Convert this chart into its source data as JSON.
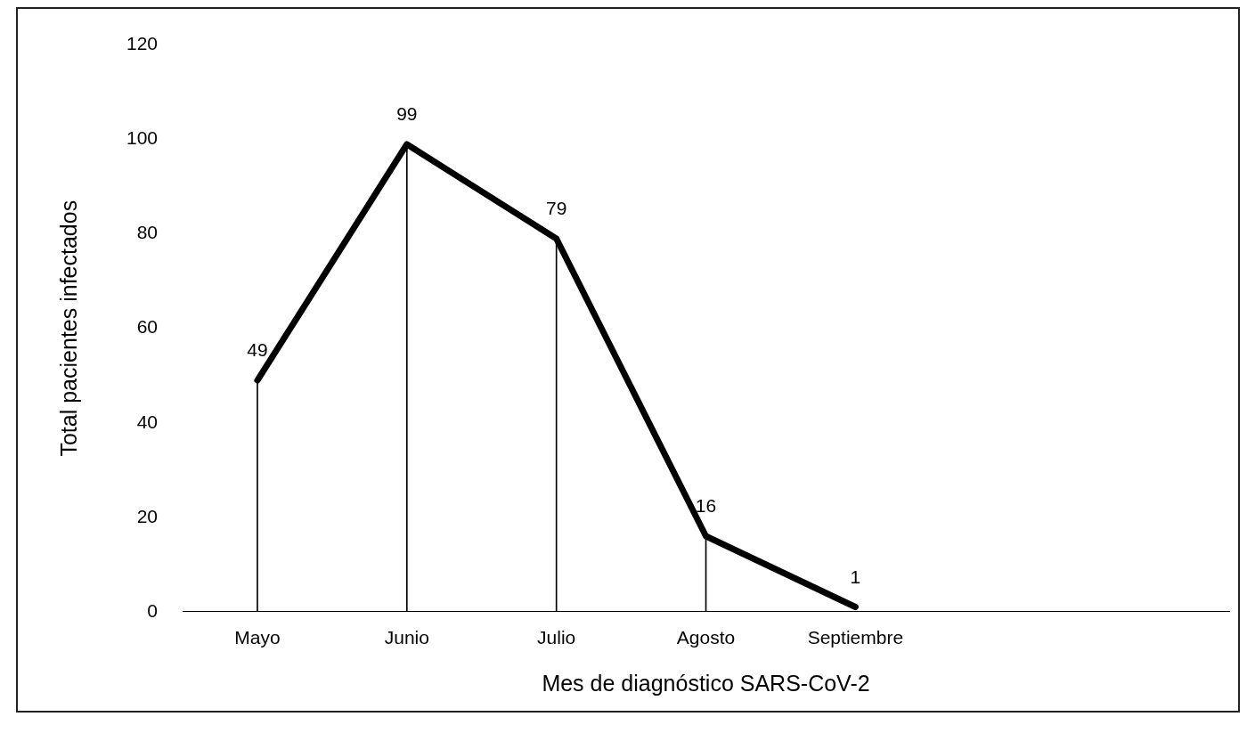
{
  "chart_data": {
    "type": "line",
    "xlabel": "Mes de diagnóstico SARS-CoV-2",
    "ylabel": "Total pacientes infectados",
    "categories": [
      "Mayo",
      "Junio",
      "Julio",
      "Agosto",
      "Septiembre",
      null,
      null
    ],
    "series": [
      {
        "color": "#000000",
        "values": [
          49,
          99,
          79,
          16,
          1,
          null,
          null
        ],
        "value_labels": [
          "49",
          "99",
          "79",
          "16",
          "1",
          null,
          null
        ]
      },
      {
        "type": "bar",
        "color": "#000000",
        "values": [
          49,
          99,
          79,
          16,
          null,
          null,
          null
        ]
      }
    ],
    "ylim": [
      0,
      120
    ],
    "yticks": [
      0,
      20,
      40,
      60,
      80,
      100,
      120
    ],
    "grid": false,
    "legend": false,
    "marker": "none",
    "line_style": "solid"
  }
}
